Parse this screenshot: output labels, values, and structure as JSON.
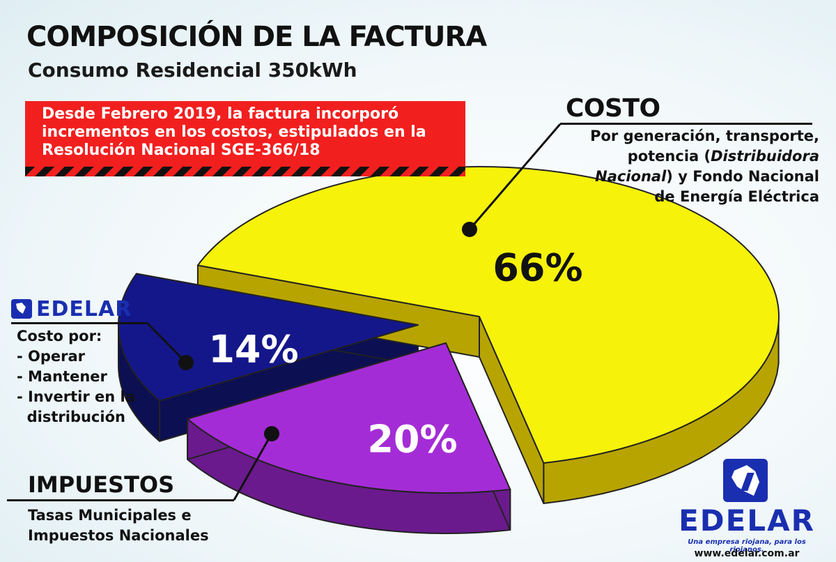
{
  "header": {
    "title": "COMPOSICIÓN DE LA FACTURA",
    "subtitle": "Consumo Residencial 350kWh"
  },
  "notice": {
    "text": "Desde Febrero 2019, la factura incorporó incrementos en los costos, estipulados en la Resolución Nacional SGE-366/18"
  },
  "labels": {
    "costo": {
      "title": "COSTO",
      "desc_1": "Por generación, transporte,",
      "desc_2": "potencia (",
      "desc_2_italic": "Distribuidora",
      "desc_3_italic": "Nacional",
      "desc_3": ") y Fondo Nacional",
      "desc_4": "de Energía Eléctrica"
    },
    "edelar": {
      "name": "EDELAR",
      "desc": "Costo por:\n- Operar\n- Mantener\n- Invertir en la\n  distribución"
    },
    "impuestos": {
      "title": "IMPUESTOS",
      "desc_1": "Tasas Municipales e",
      "desc_2": "Impuestos Nacionales"
    }
  },
  "brand": {
    "name": "EDELAR",
    "tagline": "Una empresa riojana, para los riojanos.",
    "url": "www.edelar.com.ar"
  },
  "chart_data": {
    "type": "pie",
    "title": "COMPOSICIÓN DE LA FACTURA",
    "subtitle": "Consumo Residencial 350kWh",
    "categories": [
      "COSTO",
      "IMPUESTOS",
      "EDELAR"
    ],
    "values": [
      66,
      20,
      14
    ],
    "labels": [
      "66%",
      "20%",
      "14%"
    ],
    "colors": {
      "COSTO": {
        "top": "#f6f20a",
        "side": "#b8a400"
      },
      "IMPUESTOS": {
        "top": "#a42cd6",
        "side": "#6a1a8c"
      },
      "EDELAR": {
        "top": "#14178a",
        "side": "#0c0f52"
      }
    },
    "label_colors": {
      "COSTO": "#111111",
      "IMPUESTOS": "#ffffff",
      "EDELAR": "#ffffff"
    },
    "style": "3d-exploded"
  }
}
